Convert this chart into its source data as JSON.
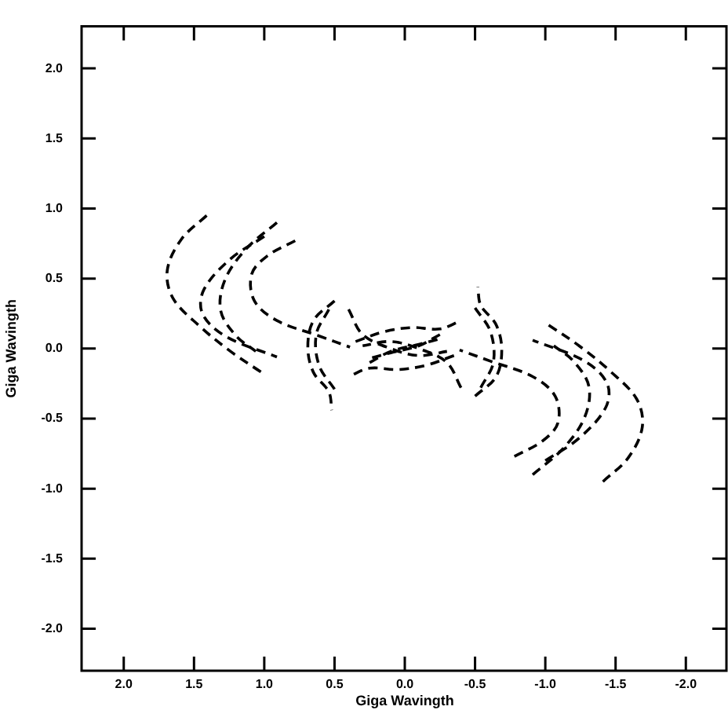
{
  "chart_data": {
    "type": "line",
    "xlabel": "Giga Wavingth",
    "ylabel": "Giga Wavingth",
    "xlim": [
      2.3,
      -2.3
    ],
    "ylim": [
      -2.3,
      2.3
    ],
    "xticks": [
      {
        "value": 2.0,
        "label": "2.0"
      },
      {
        "value": 1.5,
        "label": "1.5"
      },
      {
        "value": 1.0,
        "label": "1.0"
      },
      {
        "value": 0.5,
        "label": "0.5"
      },
      {
        "value": 0,
        "label": "0.0"
      },
      {
        "value": -0.5,
        "label": "-0.5"
      },
      {
        "value": -1.0,
        "label": "-1.0"
      },
      {
        "value": -1.5,
        "label": "-1.5"
      },
      {
        "value": -2.0,
        "label": "-2.0"
      }
    ],
    "yticks": [
      {
        "value": 2.0,
        "label": "2.0"
      },
      {
        "value": 1.5,
        "label": "1.5"
      },
      {
        "value": 1.0,
        "label": "1.0"
      },
      {
        "value": 0.5,
        "label": "0.5"
      },
      {
        "value": 0,
        "label": "0.0"
      },
      {
        "value": -0.5,
        "label": "-0.5"
      },
      {
        "value": -1.0,
        "label": "-1.0"
      },
      {
        "value": -1.5,
        "label": "-1.5"
      },
      {
        "value": -2.0,
        "label": "-2.0"
      }
    ],
    "grid": false,
    "legend": false,
    "marker": "none",
    "line_style": "dashed",
    "series": [
      {
        "color": "#000000",
        "x": [
          1.41,
          1.59,
          1.69,
          1.65,
          1.46,
          1.24,
          1.02
        ],
        "values": [
          0.95,
          0.78,
          0.56,
          0.36,
          0.16,
          -0.02,
          -0.17
        ]
      },
      {
        "color": "#000000",
        "x": [
          -1.41,
          -1.59,
          -1.69,
          -1.65,
          -1.46,
          -1.24,
          -1.02
        ],
        "values": [
          -0.95,
          -0.78,
          -0.56,
          -0.36,
          -0.16,
          0.02,
          0.17
        ]
      },
      {
        "color": "#000000",
        "x": [
          1.0,
          1.24,
          1.43,
          1.44,
          1.28,
          0.91
        ],
        "values": [
          0.8,
          0.64,
          0.42,
          0.25,
          0.09,
          -0.06
        ]
      },
      {
        "color": "#000000",
        "x": [
          -1.0,
          -1.24,
          -1.43,
          -1.44,
          -1.28,
          -0.91
        ],
        "values": [
          -0.8,
          -0.64,
          -0.42,
          -0.25,
          -0.09,
          0.06
        ]
      },
      {
        "color": "#000000",
        "x": [
          0.91,
          1.13,
          1.28,
          1.31,
          1.2,
          1.06
        ],
        "values": [
          0.9,
          0.71,
          0.49,
          0.27,
          0.09,
          -0.02
        ]
      },
      {
        "color": "#000000",
        "x": [
          -0.91,
          -1.13,
          -1.28,
          -1.31,
          -1.2,
          -1.06
        ],
        "values": [
          -0.9,
          -0.71,
          -0.49,
          -0.27,
          -0.09,
          0.02
        ]
      },
      {
        "color": "#000000",
        "x": [
          0.78,
          0.98,
          1.09,
          1.07,
          0.91,
          0.61,
          0.39
        ],
        "values": [
          0.77,
          0.66,
          0.53,
          0.34,
          0.2,
          0.09,
          0.01
        ]
      },
      {
        "color": "#000000",
        "x": [
          -0.78,
          -0.98,
          -1.09,
          -1.07,
          -0.91,
          -0.61,
          -0.39
        ],
        "values": [
          -0.77,
          -0.66,
          -0.53,
          -0.34,
          -0.2,
          -0.09,
          -0.01
        ]
      },
      {
        "color": "#000000",
        "x": [
          0.5,
          0.65,
          0.69,
          0.65,
          0.54,
          0.52
        ],
        "values": [
          0.34,
          0.2,
          0.01,
          -0.17,
          -0.31,
          -0.44
        ]
      },
      {
        "color": "#000000",
        "x": [
          -0.5,
          -0.65,
          -0.69,
          -0.65,
          -0.54,
          -0.52
        ],
        "values": [
          -0.34,
          -0.2,
          -0.01,
          0.17,
          0.31,
          0.44
        ]
      },
      {
        "color": "#000000",
        "x": [
          -0.5,
          -0.61,
          -0.63,
          -0.54
        ],
        "values": [
          0.29,
          0.12,
          -0.1,
          -0.28
        ]
      },
      {
        "color": "#000000",
        "x": [
          0.5,
          0.61,
          0.63,
          0.54
        ],
        "values": [
          -0.29,
          -0.12,
          0.1,
          0.28
        ]
      },
      {
        "color": "#000000",
        "x": [
          0.4,
          0.3,
          0.1,
          -0.1,
          -0.3
        ],
        "values": [
          0.28,
          0.1,
          0.0,
          -0.05,
          -0.02
        ]
      },
      {
        "color": "#000000",
        "x": [
          -0.4,
          -0.3,
          -0.1,
          0.1,
          0.3
        ],
        "values": [
          -0.28,
          -0.1,
          0.0,
          0.05,
          0.02
        ]
      },
      {
        "color": "#000000",
        "x": [
          0.35,
          0.15,
          -0.05,
          -0.25,
          -0.4
        ],
        "values": [
          0.05,
          0.12,
          0.15,
          0.14,
          0.2
        ]
      },
      {
        "color": "#000000",
        "x": [
          -0.35,
          -0.15,
          0.05,
          0.25,
          0.4
        ],
        "values": [
          -0.05,
          -0.12,
          -0.15,
          -0.14,
          -0.2
        ]
      },
      {
        "color": "#000000",
        "x": [
          0.25,
          0.1,
          -0.1,
          -0.25
        ],
        "values": [
          -0.1,
          -0.02,
          0.03,
          0.07
        ]
      },
      {
        "color": "#000000",
        "x": [
          -0.25,
          -0.1,
          0.1,
          0.25
        ],
        "values": [
          0.1,
          0.02,
          -0.03,
          -0.07
        ]
      }
    ]
  }
}
